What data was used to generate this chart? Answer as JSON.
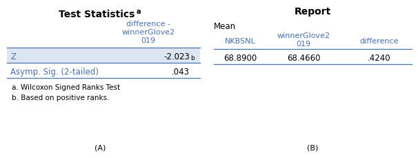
{
  "left_title": "Test Statistics",
  "left_title_sup": "a",
  "left_col_header_lines": [
    "difference -",
    "winnerGlove2",
    "019"
  ],
  "left_rows": [
    "Z",
    "Asymp. Sig. (2-tailed)"
  ],
  "left_val_z": "-2.023",
  "left_val_z_sup": "b",
  "left_val_sig": ".043",
  "left_footnote1": "a. Wilcoxon Signed Ranks Test",
  "left_footnote2": "b. Based on positive ranks.",
  "left_label": "(A)",
  "right_title": "Report",
  "right_sub_header": "Mean",
  "right_col_headers": [
    "NKBSNL",
    "winnerGlove2\n019",
    "difference"
  ],
  "right_values": [
    "68.8900",
    "68.4660",
    ".4240"
  ],
  "right_label": "(B)",
  "header_color": "#4472c4",
  "row_bg_color": "#dce6f1",
  "text_dark": "#000000",
  "bg_color": "#ffffff",
  "border_color": "#4472c4",
  "fig_w": 5.99,
  "fig_h": 2.29,
  "dpi": 100
}
